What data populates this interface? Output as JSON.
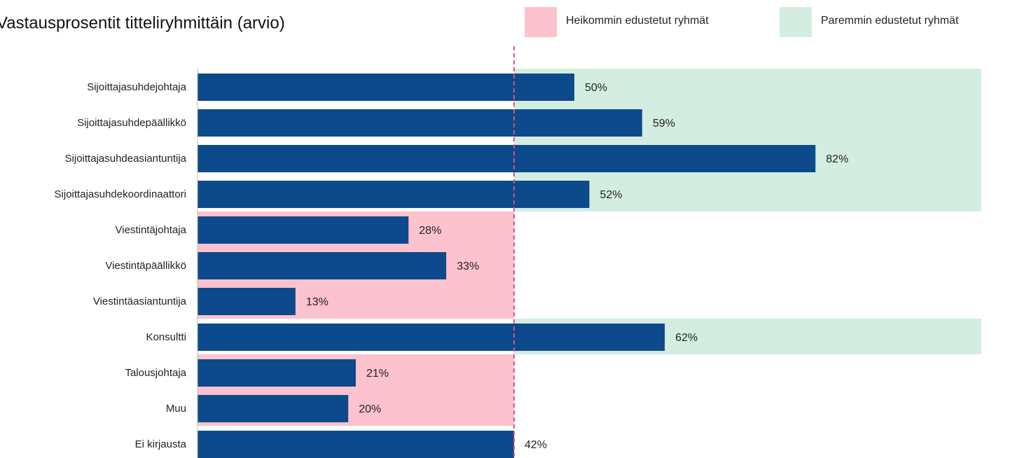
{
  "chart_data": {
    "type": "bar",
    "orientation": "horizontal",
    "title": "Vastausprosentit titteliryhmittäin (arvio)",
    "categories": [
      "Sijoittajasuhdejohtaja",
      "Sijoittajasuhdepäällikkö",
      "Sijoittajasuhdeasiantuntija",
      "Sijoittajasuhdekoordinaattori",
      "Viestintäjohtaja",
      "Viestintäpäällikkö",
      "Viestintäasiantuntija",
      "Konsultti",
      "Talousjohtaja",
      "Muu",
      "Ei kirjausta"
    ],
    "values": [
      50,
      59,
      82,
      52,
      28,
      33,
      13,
      62,
      21,
      20,
      42
    ],
    "value_labels": [
      "50%",
      "59%",
      "82%",
      "52%",
      "28%",
      "33%",
      "13%",
      "62%",
      "21%",
      "20%",
      "42%"
    ],
    "color": "#0d4a8b",
    "xlim": [
      0,
      104
    ],
    "reference_line": 42,
    "reference_color": "#e0507a",
    "legend": [
      {
        "name": "Heikommin edustetut ryhmät",
        "color": "#fcc2cd"
      },
      {
        "name": "Paremmin edustetut ryhmät",
        "color": "#d3eee1"
      }
    ],
    "groups": [
      1,
      1,
      1,
      1,
      0,
      0,
      0,
      1,
      0,
      0,
      null
    ]
  }
}
